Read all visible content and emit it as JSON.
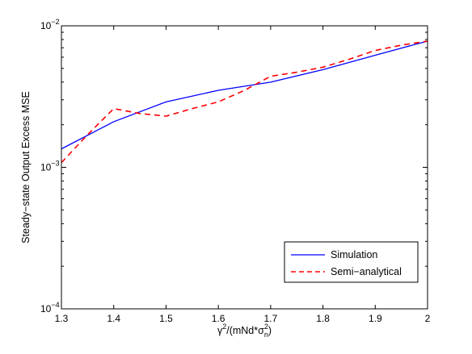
{
  "chart_data": {
    "type": "line",
    "title": "",
    "xlabel_parts": {
      "gamma": "γ",
      "sup2a": "2",
      "mid": "/(mNd*σ",
      "sub_n": "n",
      "sup2b": "2",
      "close": ")"
    },
    "ylabel": "Steady−state Output Excess MSE",
    "xlim": [
      1.3,
      2.0
    ],
    "ylim": [
      0.0001,
      0.01
    ],
    "yscale": "log",
    "grid": false,
    "legend_position": "bottom-right",
    "x_ticks": [
      {
        "value": 1.3,
        "label": "1.3"
      },
      {
        "value": 1.4,
        "label": "1.4"
      },
      {
        "value": 1.5,
        "label": "1.5"
      },
      {
        "value": 1.6,
        "label": "1.6"
      },
      {
        "value": 1.7,
        "label": "1.7"
      },
      {
        "value": 1.8,
        "label": "1.8"
      },
      {
        "value": 1.9,
        "label": "1.9"
      },
      {
        "value": 2.0,
        "label": "2"
      }
    ],
    "y_ticks": [
      {
        "value": 0.0001,
        "base": "10",
        "exp": "−4"
      },
      {
        "value": 0.001,
        "base": "10",
        "exp": "−3"
      },
      {
        "value": 0.01,
        "base": "10",
        "exp": "−2"
      }
    ],
    "series": [
      {
        "name": "Simulation",
        "color": "#0000ff",
        "dash": "solid",
        "x": [
          1.3,
          1.4,
          1.5,
          1.6,
          1.7,
          1.8,
          1.9,
          2.0
        ],
        "y": [
          0.00135,
          0.0021,
          0.0029,
          0.0035,
          0.004,
          0.0049,
          0.0062,
          0.0078
        ]
      },
      {
        "name": "Semi−analytical",
        "color": "#ff0000",
        "dash": "dashed",
        "x": [
          1.3,
          1.35,
          1.4,
          1.45,
          1.5,
          1.55,
          1.6,
          1.65,
          1.7,
          1.75,
          1.8,
          1.85,
          1.9,
          1.95,
          2.0
        ],
        "y": [
          0.00108,
          0.0017,
          0.0026,
          0.0024,
          0.0023,
          0.0026,
          0.0029,
          0.0035,
          0.0044,
          0.0047,
          0.0051,
          0.0058,
          0.0067,
          0.0073,
          0.0078
        ]
      }
    ]
  }
}
